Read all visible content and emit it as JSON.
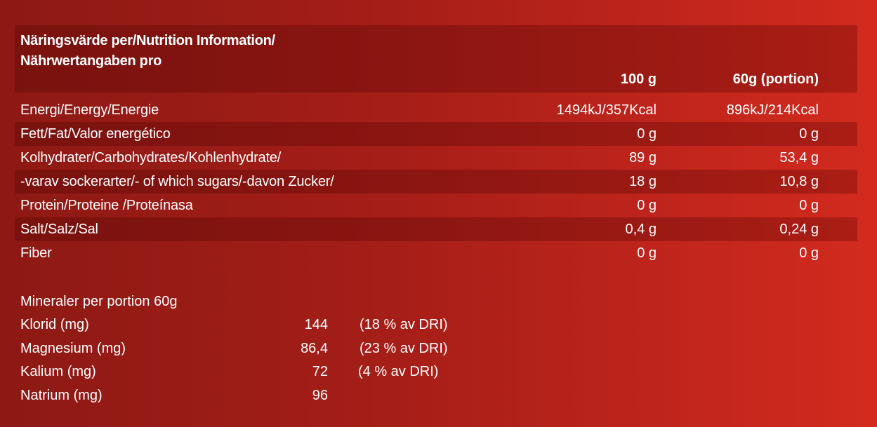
{
  "table": {
    "title_line1": "Näringsvärde per/Nutrition Information/",
    "title_line2": "Nährwertangaben pro",
    "col1": "100 g",
    "col2": "60g (portion)",
    "rows": [
      {
        "label": "Energi/Energy/Energie",
        "v1": "1494kJ/357Kcal",
        "v2": "896kJ/214Kcal"
      },
      {
        "label": "Fett/Fat/Valor energético",
        "v1": "0 g",
        "v2": "0 g"
      },
      {
        "label": "Kolhydrater/Carbohydrates/Kohlenhydrate/",
        "v1": "89 g",
        "v2": "53,4 g"
      },
      {
        "label": "-varav sockerarter/- of which sugars/-davon Zucker/",
        "v1": "18 g",
        "v2": "10,8 g"
      },
      {
        "label": "Protein/Proteine /Proteínasa",
        "v1": "0 g",
        "v2": "0 g"
      },
      {
        "label": "Salt/Salz/Sal",
        "v1": "0,4 g",
        "v2": "0,24 g"
      },
      {
        "label": "Fiber",
        "v1": "0 g",
        "v2": "0 g"
      }
    ]
  },
  "minerals": {
    "heading": "Mineraler per portion 60g",
    "rows": [
      {
        "label": "Klorid (mg)",
        "value": "144",
        "dri": "(18 % av DRI)"
      },
      {
        "label": "Magnesium (mg)",
        "value": "86,4",
        "dri": "(23 % av DRI)"
      },
      {
        "label": "Kalium (mg)",
        "value": "72",
        "dri": "(4 % av DRI)"
      },
      {
        "label": "Natrium (mg)",
        "value": "96",
        "dri": ""
      }
    ]
  }
}
